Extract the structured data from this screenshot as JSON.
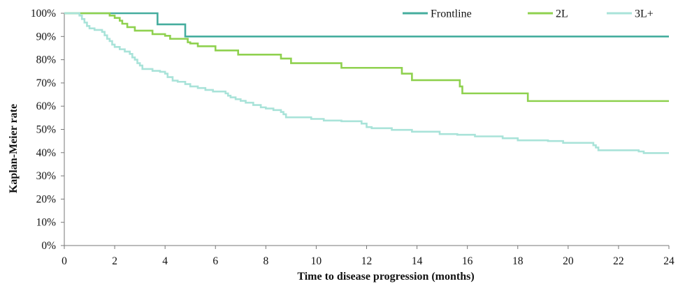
{
  "chart_data": {
    "type": "line",
    "step": true,
    "xlabel": "Time to disease progression (months)",
    "ylabel": "Kaplan-Meier rate",
    "xlim": [
      0,
      24
    ],
    "ylim": [
      0,
      100
    ],
    "x_ticks": [
      0,
      2,
      4,
      6,
      8,
      10,
      12,
      14,
      16,
      18,
      20,
      22,
      24
    ],
    "y_ticks": [
      0,
      10,
      20,
      30,
      40,
      50,
      60,
      70,
      80,
      90,
      100
    ],
    "y_tick_labels": [
      "0%",
      "10%",
      "20%",
      "30%",
      "40%",
      "50%",
      "60%",
      "70%",
      "80%",
      "90%",
      "100%"
    ],
    "grid": false,
    "legend_position": "top-right",
    "series": [
      {
        "name": "Frontline",
        "color": "#45ad9e",
        "points": [
          [
            0,
            100
          ],
          [
            3.7,
            95.2
          ],
          [
            4.8,
            90.0
          ],
          [
            24,
            90.0
          ]
        ]
      },
      {
        "name": "2L",
        "color": "#8fd14f",
        "points": [
          [
            0,
            100
          ],
          [
            1.8,
            99.0
          ],
          [
            2.0,
            98.0
          ],
          [
            2.2,
            96.8
          ],
          [
            2.3,
            95.5
          ],
          [
            2.5,
            94.0
          ],
          [
            2.8,
            92.5
          ],
          [
            3.5,
            91.0
          ],
          [
            4.0,
            90.3
          ],
          [
            4.2,
            89.0
          ],
          [
            4.9,
            87.5
          ],
          [
            5.0,
            87.0
          ],
          [
            5.3,
            85.8
          ],
          [
            6.0,
            84.0
          ],
          [
            6.9,
            82.2
          ],
          [
            8.6,
            80.5
          ],
          [
            9.0,
            78.5
          ],
          [
            11.0,
            76.5
          ],
          [
            13.4,
            74.0
          ],
          [
            13.8,
            71.2
          ],
          [
            15.7,
            68.5
          ],
          [
            15.8,
            65.5
          ],
          [
            18.4,
            62.2
          ],
          [
            24,
            62.2
          ]
        ]
      },
      {
        "name": "3L+",
        "color": "#a9e3d9",
        "points": [
          [
            0,
            100
          ],
          [
            0.6,
            99.0
          ],
          [
            0.7,
            97.5
          ],
          [
            0.8,
            96.0
          ],
          [
            0.9,
            94.5
          ],
          [
            1.0,
            93.5
          ],
          [
            1.2,
            92.8
          ],
          [
            1.5,
            92.0
          ],
          [
            1.6,
            90.5
          ],
          [
            1.7,
            89.0
          ],
          [
            1.8,
            88.0
          ],
          [
            1.9,
            86.5
          ],
          [
            2.0,
            85.5
          ],
          [
            2.2,
            84.5
          ],
          [
            2.4,
            83.5
          ],
          [
            2.6,
            82.5
          ],
          [
            2.7,
            81.0
          ],
          [
            2.8,
            80.0
          ],
          [
            2.9,
            78.5
          ],
          [
            3.0,
            77.5
          ],
          [
            3.1,
            76.0
          ],
          [
            3.5,
            75.2
          ],
          [
            3.8,
            74.8
          ],
          [
            4.0,
            74.0
          ],
          [
            4.1,
            72.5
          ],
          [
            4.3,
            71.0
          ],
          [
            4.5,
            70.5
          ],
          [
            4.8,
            69.5
          ],
          [
            5.0,
            68.5
          ],
          [
            5.3,
            67.8
          ],
          [
            5.6,
            67.0
          ],
          [
            5.9,
            66.3
          ],
          [
            6.4,
            65.5
          ],
          [
            6.5,
            64.5
          ],
          [
            6.6,
            63.8
          ],
          [
            6.8,
            63.0
          ],
          [
            7.0,
            62.3
          ],
          [
            7.2,
            61.5
          ],
          [
            7.5,
            60.5
          ],
          [
            7.8,
            59.5
          ],
          [
            8.0,
            59.0
          ],
          [
            8.3,
            58.3
          ],
          [
            8.6,
            57.5
          ],
          [
            8.7,
            56.5
          ],
          [
            8.8,
            55.2
          ],
          [
            9.8,
            54.5
          ],
          [
            10.3,
            53.8
          ],
          [
            11.0,
            53.5
          ],
          [
            11.8,
            52.5
          ],
          [
            12.0,
            51.0
          ],
          [
            12.2,
            50.5
          ],
          [
            13.0,
            49.8
          ],
          [
            13.8,
            49.0
          ],
          [
            14.9,
            48.0
          ],
          [
            15.6,
            47.7
          ],
          [
            16.3,
            47.0
          ],
          [
            17.4,
            46.2
          ],
          [
            18.0,
            45.3
          ],
          [
            19.2,
            45.0
          ],
          [
            19.8,
            44.2
          ],
          [
            21.0,
            43.2
          ],
          [
            21.1,
            42.2
          ],
          [
            21.2,
            41.0
          ],
          [
            22.8,
            40.5
          ],
          [
            23.0,
            39.8
          ],
          [
            24,
            39.8
          ]
        ]
      }
    ]
  }
}
